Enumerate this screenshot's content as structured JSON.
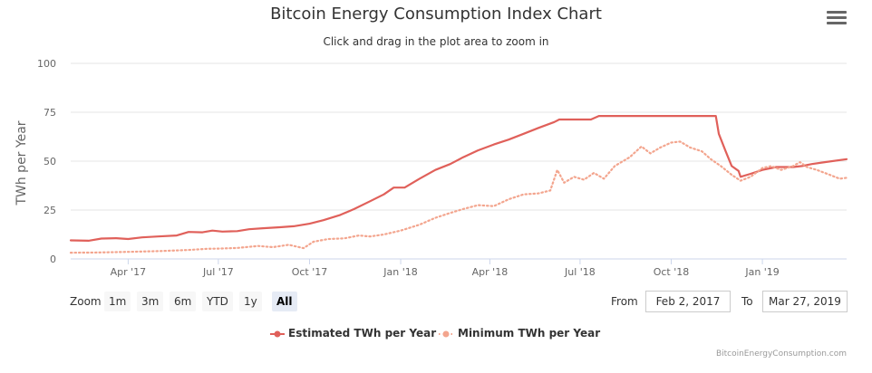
{
  "chart_data": {
    "type": "line",
    "title": "Bitcoin Energy Consumption Index Chart",
    "subtitle": "Click and drag in the plot area to zoom in",
    "ylabel": "TWh per Year",
    "ylim": [
      0,
      100
    ],
    "yticks": [
      "0",
      "25",
      "50",
      "75",
      "100"
    ],
    "xlim": [
      "2017-02-02",
      "2019-03-27"
    ],
    "xticks": [
      {
        "label": "Apr '17",
        "date": "2017-04-01"
      },
      {
        "label": "Jul '17",
        "date": "2017-07-01"
      },
      {
        "label": "Oct '17",
        "date": "2017-10-01"
      },
      {
        "label": "Jan '18",
        "date": "2018-01-01"
      },
      {
        "label": "Apr '18",
        "date": "2018-04-01"
      },
      {
        "label": "Jul '18",
        "date": "2018-07-01"
      },
      {
        "label": "Oct '18",
        "date": "2018-10-01"
      },
      {
        "label": "Jan '19",
        "date": "2019-01-01"
      }
    ],
    "grid": true,
    "legend_position": "bottom-center",
    "series": [
      {
        "name": "Estimated TWh per Year",
        "color": "#e0605a",
        "style": "solid",
        "points": [
          [
            "2017-02-02",
            9.5
          ],
          [
            "2017-02-20",
            9.3
          ],
          [
            "2017-03-05",
            10.4
          ],
          [
            "2017-03-20",
            10.6
          ],
          [
            "2017-04-01",
            10.2
          ],
          [
            "2017-04-15",
            11.0
          ],
          [
            "2017-05-01",
            11.5
          ],
          [
            "2017-05-20",
            12.0
          ],
          [
            "2017-06-01",
            13.8
          ],
          [
            "2017-06-15",
            13.6
          ],
          [
            "2017-06-25",
            14.5
          ],
          [
            "2017-07-05",
            14.0
          ],
          [
            "2017-07-20",
            14.2
          ],
          [
            "2017-08-01",
            15.2
          ],
          [
            "2017-08-15",
            15.7
          ],
          [
            "2017-09-01",
            16.2
          ],
          [
            "2017-09-15",
            16.7
          ],
          [
            "2017-10-01",
            18.0
          ],
          [
            "2017-10-15",
            19.8
          ],
          [
            "2017-11-01",
            22.5
          ],
          [
            "2017-11-15",
            25.5
          ],
          [
            "2017-12-01",
            29.5
          ],
          [
            "2017-12-15",
            33.0
          ],
          [
            "2017-12-25",
            36.5
          ],
          [
            "2018-01-05",
            36.5
          ],
          [
            "2018-01-20",
            41.0
          ],
          [
            "2018-02-05",
            45.5
          ],
          [
            "2018-02-20",
            48.5
          ],
          [
            "2018-03-05",
            52.0
          ],
          [
            "2018-03-20",
            55.5
          ],
          [
            "2018-04-05",
            58.5
          ],
          [
            "2018-04-20",
            61.0
          ],
          [
            "2018-05-05",
            64.0
          ],
          [
            "2018-05-20",
            67.0
          ],
          [
            "2018-06-05",
            70.0
          ],
          [
            "2018-06-10",
            71.3
          ],
          [
            "2018-07-12",
            71.3
          ],
          [
            "2018-07-20",
            73.1
          ],
          [
            "2018-11-15",
            73.1
          ],
          [
            "2018-11-18",
            64.0
          ],
          [
            "2018-11-25",
            55.0
          ],
          [
            "2018-12-01",
            47.5
          ],
          [
            "2018-12-08",
            45.0
          ],
          [
            "2018-12-10",
            42.0
          ],
          [
            "2018-12-20",
            43.5
          ],
          [
            "2019-01-01",
            45.5
          ],
          [
            "2019-01-15",
            47.0
          ],
          [
            "2019-02-01",
            47.0
          ],
          [
            "2019-02-10",
            47.5
          ],
          [
            "2019-02-20",
            48.5
          ],
          [
            "2019-03-05",
            49.5
          ],
          [
            "2019-03-27",
            51.0
          ]
        ]
      },
      {
        "name": "Minimum TWh per Year",
        "color": "#f3a58e",
        "style": "dotted",
        "points": [
          [
            "2017-02-02",
            3.2
          ],
          [
            "2017-03-01",
            3.3
          ],
          [
            "2017-04-01",
            3.6
          ],
          [
            "2017-05-01",
            4.0
          ],
          [
            "2017-06-01",
            4.6
          ],
          [
            "2017-06-20",
            5.2
          ],
          [
            "2017-07-01",
            5.3
          ],
          [
            "2017-07-20",
            5.6
          ],
          [
            "2017-08-10",
            6.6
          ],
          [
            "2017-08-25",
            6.0
          ],
          [
            "2017-09-10",
            7.2
          ],
          [
            "2017-09-25",
            5.5
          ],
          [
            "2017-10-05",
            8.8
          ],
          [
            "2017-10-20",
            10.2
          ],
          [
            "2017-11-05",
            10.5
          ],
          [
            "2017-11-20",
            12.0
          ],
          [
            "2017-12-01",
            11.5
          ],
          [
            "2017-12-15",
            12.5
          ],
          [
            "2018-01-01",
            14.5
          ],
          [
            "2018-01-20",
            17.5
          ],
          [
            "2018-02-05",
            21.0
          ],
          [
            "2018-02-20",
            23.5
          ],
          [
            "2018-03-05",
            25.5
          ],
          [
            "2018-03-20",
            27.5
          ],
          [
            "2018-04-05",
            27.0
          ],
          [
            "2018-04-20",
            30.5
          ],
          [
            "2018-05-05",
            33.0
          ],
          [
            "2018-05-20",
            33.5
          ],
          [
            "2018-06-01",
            35.0
          ],
          [
            "2018-06-08",
            45.5
          ],
          [
            "2018-06-15",
            39.0
          ],
          [
            "2018-06-25",
            42.0
          ],
          [
            "2018-07-05",
            40.5
          ],
          [
            "2018-07-15",
            44.0
          ],
          [
            "2018-07-25",
            41.0
          ],
          [
            "2018-08-05",
            47.5
          ],
          [
            "2018-08-20",
            52.0
          ],
          [
            "2018-09-01",
            57.5
          ],
          [
            "2018-09-10",
            54.0
          ],
          [
            "2018-09-20",
            57.0
          ],
          [
            "2018-10-01",
            59.5
          ],
          [
            "2018-10-10",
            60.0
          ],
          [
            "2018-10-20",
            57.0
          ],
          [
            "2018-11-01",
            55.0
          ],
          [
            "2018-11-10",
            51.0
          ],
          [
            "2018-11-20",
            47.5
          ],
          [
            "2018-12-01",
            43.0
          ],
          [
            "2018-12-10",
            40.0
          ],
          [
            "2018-12-20",
            42.0
          ],
          [
            "2019-01-01",
            46.5
          ],
          [
            "2019-01-10",
            47.5
          ],
          [
            "2019-01-20",
            45.5
          ],
          [
            "2019-02-01",
            47.5
          ],
          [
            "2019-02-08",
            49.5
          ],
          [
            "2019-02-15",
            47.0
          ],
          [
            "2019-02-25",
            45.5
          ],
          [
            "2019-03-10",
            43.0
          ],
          [
            "2019-03-20",
            41.0
          ],
          [
            "2019-03-27",
            41.5
          ]
        ]
      }
    ]
  },
  "range_selector": {
    "label": "Zoom",
    "buttons": [
      "1m",
      "3m",
      "6m",
      "YTD",
      "1y",
      "All"
    ],
    "selected": "All",
    "from_label": "From",
    "from_value": "Feb 2, 2017",
    "to_label": "To",
    "to_value": "Mar 27, 2019"
  },
  "menu_icon": "hamburger-menu-icon",
  "credits": "BitcoinEnergyConsumption.com"
}
